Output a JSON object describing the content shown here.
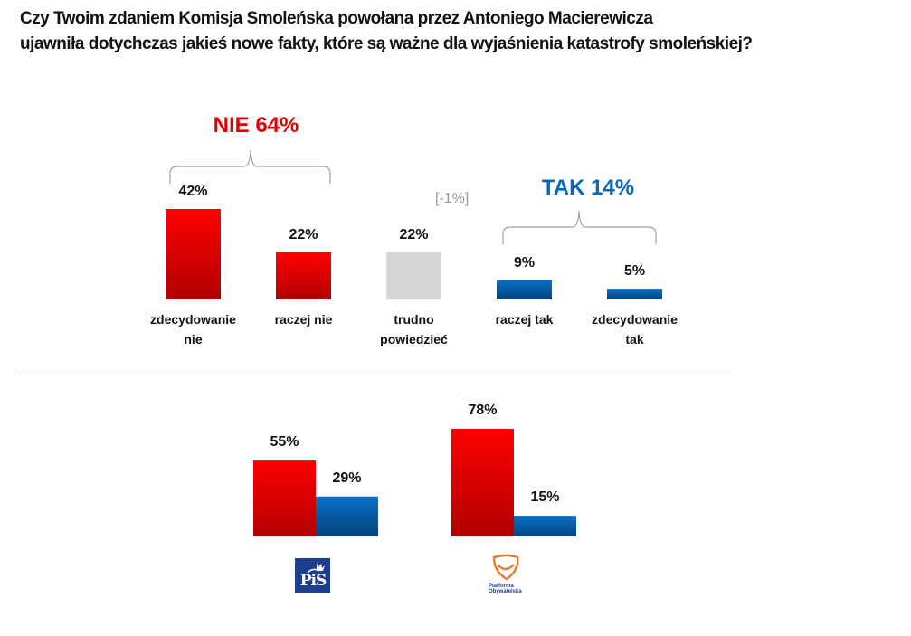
{
  "title": {
    "line1": "Czy Twoim zdaniem Komisja Smoleńska powołana przez Antoniego Macierewicza",
    "line2": "ujawniła dotychczas jakieś nowe fakty, które są ważne dla wyjaśnienia katastrofy smoleńskiej?"
  },
  "colors": {
    "nie": "#e00000",
    "tak": "#0868bb",
    "neutral": "#d6d6d6",
    "bracket": "#a0a0a0",
    "note": "#9a9a9a"
  },
  "groups": {
    "nie": {
      "label": "NIE 64%"
    },
    "tak": {
      "label": "TAK 14%"
    },
    "note": "[-1%]"
  },
  "chart_data": [
    {
      "type": "bar",
      "title": "Czy Twoim zdaniem Komisja Smoleńska powołana przez Antoniego Macierewicza ujawniła dotychczas jakieś nowe fakty, które są ważne dla wyjaśnienia katastrofy smoleńskiej?",
      "categories": [
        "zdecydowanie nie",
        "raczej nie",
        "trudno powiedzieć",
        "raczej tak",
        "zdecydowanie tak"
      ],
      "category_lines": [
        [
          "zdecydowanie",
          "nie"
        ],
        [
          "raczej nie"
        ],
        [
          "trudno",
          "powiedzieć"
        ],
        [
          "raczej tak"
        ],
        [
          "zdecydowanie",
          "tak"
        ]
      ],
      "values": [
        42,
        22,
        22,
        9,
        5
      ],
      "value_labels": [
        "42%",
        "22%",
        "22%",
        "9%",
        "5%"
      ],
      "color_keys": [
        "nie",
        "nie",
        "neutral",
        "tak",
        "tak"
      ],
      "unit": "%",
      "xlabel": "",
      "ylabel": "",
      "ylim": [
        0,
        42
      ],
      "grid": false,
      "annotations": [
        "NIE 64%",
        "TAK 14%",
        "[-1%]"
      ]
    },
    {
      "type": "bar",
      "categories": [
        "PiS",
        "Platforma Obywatelska"
      ],
      "series": [
        {
          "name": "NIE",
          "values": [
            55,
            78
          ],
          "value_labels": [
            "55%",
            "78%"
          ],
          "color_key": "nie"
        },
        {
          "name": "TAK",
          "values": [
            29,
            15
          ],
          "value_labels": [
            "29%",
            "15%"
          ],
          "color_key": "tak"
        }
      ],
      "unit": "%",
      "xlabel": "",
      "ylabel": "",
      "ylim": [
        0,
        78
      ],
      "grid": false,
      "legend": "none"
    }
  ],
  "logos": {
    "pis": {
      "text": "PiS",
      "icon": "pis-logo-icon"
    },
    "po": {
      "text1": "Platforma",
      "text2": "Obywatelska",
      "icon": "po-logo-icon"
    }
  }
}
